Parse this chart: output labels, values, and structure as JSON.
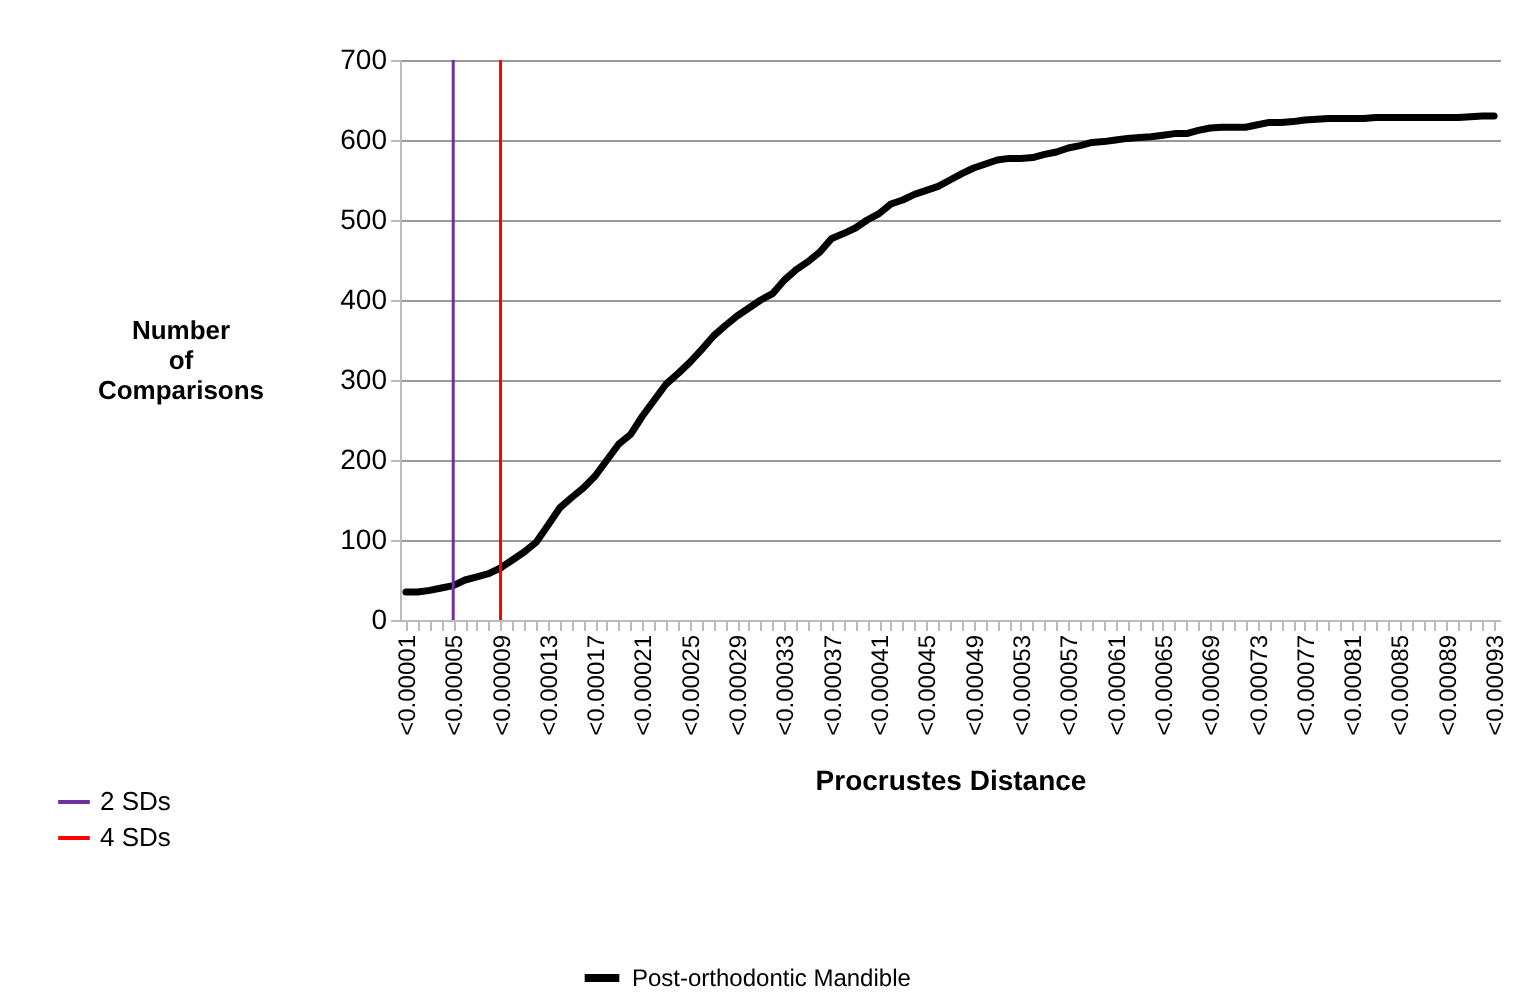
{
  "chart_data": {
    "type": "line",
    "xlabel": "Procrustes Distance",
    "ylabel": "Number of Comparisons",
    "categories": [
      "<0.00001",
      null,
      null,
      null,
      "<0.00005",
      null,
      null,
      null,
      "<0.00009",
      null,
      null,
      null,
      "<0.00013",
      null,
      null,
      null,
      "<0.00017",
      null,
      null,
      null,
      "<0.00021",
      null,
      null,
      null,
      "<0.00025",
      null,
      null,
      null,
      "<0.00029",
      null,
      null,
      null,
      "<0.00033",
      null,
      null,
      null,
      "<0.00037",
      null,
      null,
      null,
      "<0.00041",
      null,
      null,
      null,
      "<0.00045",
      null,
      null,
      null,
      "<0.00049",
      null,
      null,
      null,
      "<0.00053",
      null,
      null,
      null,
      "<0.00057",
      null,
      null,
      null,
      "<0.00061",
      null,
      null,
      null,
      "<0.00065",
      null,
      null,
      null,
      "<0.00069",
      null,
      null,
      null,
      "<0.00073",
      null,
      null,
      null,
      "<0.00077",
      null,
      null,
      null,
      "<0.00081",
      null,
      null,
      null,
      "<0.00085",
      null,
      null,
      null,
      "<0.00089",
      null,
      null,
      null,
      "<0.00093"
    ],
    "series": [
      {
        "name": "Post-orthodontic Mandible",
        "color": "#000000",
        "values": [
          35,
          35,
          37,
          40,
          43,
          50,
          54,
          58,
          65,
          75,
          85,
          97,
          118,
          140,
          153,
          165,
          180,
          200,
          220,
          232,
          255,
          275,
          295,
          308,
          322,
          338,
          355,
          368,
          380,
          390,
          400,
          408,
          425,
          438,
          448,
          460,
          477,
          483,
          490,
          500,
          508,
          520,
          525,
          532,
          537,
          542,
          550,
          558,
          565,
          570,
          575,
          577,
          577,
          578,
          582,
          585,
          590,
          593,
          597,
          598,
          600,
          602,
          603,
          604,
          606,
          608,
          608,
          612,
          615,
          616,
          616,
          616,
          619,
          622,
          622,
          623,
          625,
          626,
          627,
          627,
          627,
          627,
          628,
          628,
          628,
          628,
          628,
          628,
          628,
          628,
          629,
          630,
          630
        ]
      }
    ],
    "ylim": [
      0,
      700
    ],
    "yticks": [
      0,
      100,
      200,
      300,
      400,
      500,
      600,
      700
    ],
    "ref_lines": [
      {
        "axis": "x",
        "value": "<0.00005",
        "label": "2 SDs",
        "color": "#7030a0"
      },
      {
        "axis": "x",
        "value": "<0.00009",
        "label": "4 SDs",
        "color": "#ff0000"
      }
    ],
    "grid": "y",
    "legend": "bottom",
    "marker": "none",
    "line_style": "solid"
  }
}
